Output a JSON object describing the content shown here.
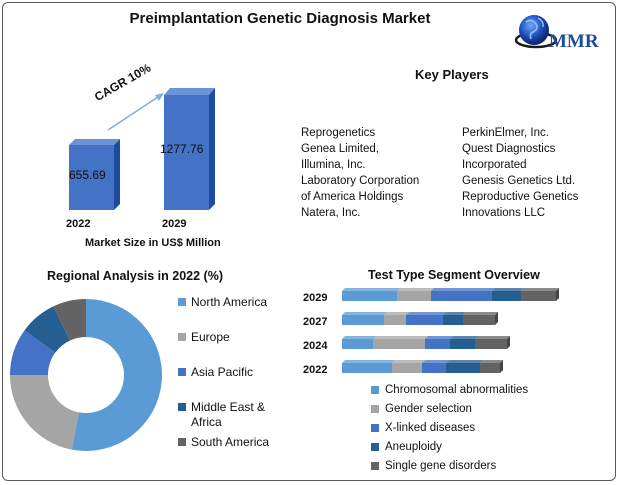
{
  "title": "Preimplantation Genetic Diagnosis Market",
  "logo": {
    "text": "MMR"
  },
  "market_chart": {
    "years": [
      "2022",
      "2029"
    ],
    "values": [
      "655.69",
      "1277.76"
    ],
    "cagr": "CAGR 10%",
    "axis_title": "Market Size in US$ Million"
  },
  "key_players": {
    "title": "Key Players",
    "col1": [
      "Reprogenetics",
      "Genea Limited,",
      "Illumina, Inc.",
      "Laboratory Corporation",
      "of America Holdings",
      "Natera, Inc."
    ],
    "col2": [
      "PerkinElmer, Inc.",
      "Quest Diagnostics",
      "Incorporated",
      "Genesis Genetics Ltd.",
      "Reproductive Genetics",
      "Innovations LLC"
    ]
  },
  "regional": {
    "title": "Regional Analysis in 2022 (%)",
    "legend": [
      "North America",
      "Europe",
      "Asia Pacific",
      "Middle East & Africa",
      "South America"
    ],
    "colors": [
      "#5b9bd5",
      "#a5a5a5",
      "#4472c4",
      "#255e91",
      "#636363"
    ]
  },
  "test_type": {
    "title": "Test Type Segment Overview",
    "legend": [
      "Chromosomal abnormalities",
      "Gender selection",
      "X-linked diseases",
      "Aneuploidy",
      "Single gene disorders"
    ],
    "colors": [
      "#5b9bd5",
      "#a5a5a5",
      "#4472c4",
      "#255e91",
      "#636363"
    ],
    "years": [
      "2029",
      "2027",
      "2024",
      "2022"
    ]
  },
  "chart_data": [
    {
      "type": "bar",
      "title": "",
      "categories": [
        "2022",
        "2029"
      ],
      "values": [
        655.69,
        1277.76
      ],
      "xlabel": "",
      "ylabel": "Market Size in US$ Million",
      "annotation": "CAGR 10%"
    },
    {
      "type": "pie",
      "title": "Regional Analysis in 2022 (%)",
      "categories": [
        "North America",
        "Europe",
        "Asia Pacific",
        "Middle East & Africa",
        "South America"
      ],
      "values": [
        53,
        22,
        10,
        8,
        7
      ],
      "style": "donut"
    },
    {
      "type": "bar",
      "title": "Test Type Segment Overview",
      "orientation": "horizontal",
      "stacked": true,
      "categories": [
        "2029",
        "2027",
        "2024",
        "2022"
      ],
      "series": [
        {
          "name": "Chromosomal abnormalities",
          "values": [
            55,
            42,
            31,
            50
          ]
        },
        {
          "name": "Gender selection",
          "values": [
            34,
            22,
            52,
            30
          ]
        },
        {
          "name": "X-linked diseases",
          "values": [
            61,
            37,
            25,
            24
          ]
        },
        {
          "name": "Aneuploidy",
          "values": [
            29,
            20,
            25,
            34
          ]
        },
        {
          "name": "Single gene disorders",
          "values": [
            35,
            32,
            32,
            20
          ]
        }
      ],
      "legend": "bottom"
    }
  ]
}
